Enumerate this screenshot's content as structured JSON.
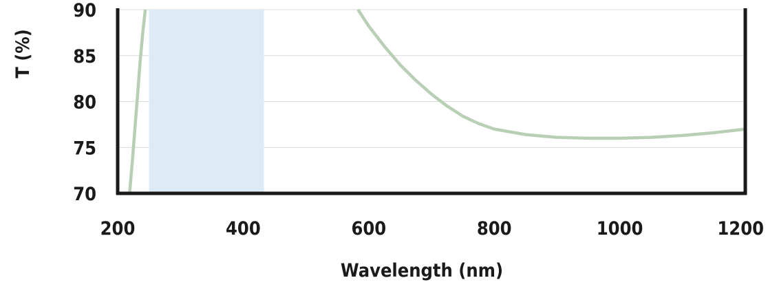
{
  "chart_data": {
    "type": "line",
    "xlabel": "Wavelength (nm)",
    "ylabel": "T (%)",
    "xlim": [
      200,
      1200
    ],
    "ylim": [
      70,
      90
    ],
    "x_ticks": [
      200,
      400,
      600,
      800,
      1000,
      1200
    ],
    "y_ticks": [
      70,
      75,
      80,
      85,
      90
    ],
    "grid": "horizontal",
    "colors": {
      "curve": "#b8cfb5",
      "band": "#dcebf5",
      "axis": "#1a1a1a",
      "grid": "#d9d9d9"
    },
    "highlight_band": {
      "x_start": 250,
      "x_end": 433
    },
    "series": [
      {
        "segments": [
          [
            [
              219,
              70.0
            ],
            [
              224,
              74.0
            ],
            [
              228,
              77.5
            ],
            [
              232,
              81.0
            ],
            [
              236,
              84.5
            ],
            [
              240,
              87.5
            ],
            [
              244,
              90.0
            ]
          ],
          [
            [
              583,
              90.0
            ],
            [
              600,
              88.2
            ],
            [
              625,
              86.0
            ],
            [
              650,
              84.0
            ],
            [
              675,
              82.3
            ],
            [
              700,
              80.8
            ],
            [
              725,
              79.5
            ],
            [
              750,
              78.4
            ],
            [
              775,
              77.6
            ],
            [
              800,
              77.0
            ],
            [
              850,
              76.4
            ],
            [
              900,
              76.1
            ],
            [
              950,
              76.0
            ],
            [
              1000,
              76.0
            ],
            [
              1050,
              76.1
            ],
            [
              1100,
              76.3
            ],
            [
              1150,
              76.6
            ],
            [
              1200,
              77.0
            ]
          ]
        ]
      }
    ]
  }
}
